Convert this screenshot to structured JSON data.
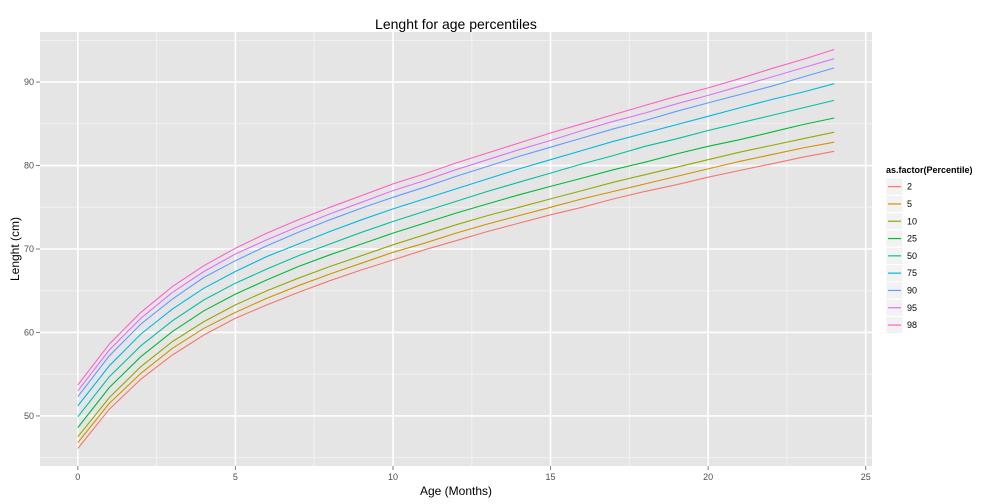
{
  "chart_data": {
    "type": "line",
    "title": "Lenght for age percentiles",
    "xlabel": "Age (Months)",
    "ylabel": "Lenght (cm)",
    "xlim": [
      -1.2,
      25.2
    ],
    "ylim": [
      44,
      96
    ],
    "x_ticks": [
      0,
      5,
      10,
      15,
      20,
      25
    ],
    "y_ticks": [
      50,
      60,
      70,
      80,
      90
    ],
    "grid": true,
    "legend": {
      "title": "as.factor(Percentile)",
      "placement": "right"
    },
    "x": [
      0,
      1,
      2,
      3,
      4,
      5,
      6,
      7,
      8,
      9,
      10,
      11,
      12,
      13,
      14,
      15,
      16,
      17,
      18,
      19,
      20,
      21,
      22,
      23,
      24
    ],
    "series": [
      {
        "name": "2",
        "color": "#F8766D",
        "values": [
          46.1,
          50.8,
          54.4,
          57.3,
          59.7,
          61.7,
          63.3,
          64.8,
          66.2,
          67.5,
          68.7,
          69.9,
          71.0,
          72.1,
          73.1,
          74.1,
          75.0,
          76.0,
          76.9,
          77.7,
          78.6,
          79.4,
          80.2,
          81.0,
          81.7
        ]
      },
      {
        "name": "5",
        "color": "#D39200",
        "values": [
          46.8,
          51.5,
          55.1,
          58.1,
          60.5,
          62.4,
          64.1,
          65.6,
          67.0,
          68.3,
          69.6,
          70.7,
          71.9,
          73.0,
          74.0,
          75.0,
          76.0,
          76.9,
          77.8,
          78.7,
          79.6,
          80.5,
          81.3,
          82.1,
          82.8
        ]
      },
      {
        "name": "10",
        "color": "#93AA00",
        "values": [
          47.5,
          52.2,
          55.9,
          58.9,
          61.3,
          63.3,
          65.0,
          66.5,
          67.9,
          69.2,
          70.5,
          71.7,
          72.9,
          74.0,
          75.0,
          76.0,
          77.0,
          78.0,
          78.9,
          79.8,
          80.7,
          81.6,
          82.4,
          83.2,
          84.0
        ]
      },
      {
        "name": "25",
        "color": "#00BA38",
        "values": [
          48.6,
          53.4,
          57.1,
          60.1,
          62.6,
          64.6,
          66.3,
          67.9,
          69.3,
          70.6,
          71.9,
          73.1,
          74.3,
          75.4,
          76.5,
          77.5,
          78.5,
          79.5,
          80.4,
          81.4,
          82.3,
          83.1,
          84.0,
          84.9,
          85.7
        ]
      },
      {
        "name": "50",
        "color": "#00C19F",
        "values": [
          49.9,
          54.7,
          58.4,
          61.4,
          63.9,
          65.9,
          67.6,
          69.2,
          70.6,
          72.0,
          73.3,
          74.5,
          75.7,
          76.9,
          78.0,
          79.1,
          80.2,
          81.2,
          82.3,
          83.2,
          84.2,
          85.1,
          86.0,
          86.9,
          87.8
        ]
      },
      {
        "name": "75",
        "color": "#00B9E3",
        "values": [
          51.2,
          56.0,
          59.8,
          62.8,
          65.3,
          67.3,
          69.1,
          70.6,
          72.1,
          73.5,
          74.8,
          76.0,
          77.2,
          78.4,
          79.6,
          80.7,
          81.8,
          82.9,
          83.9,
          84.9,
          85.9,
          86.9,
          87.9,
          88.8,
          89.8
        ]
      },
      {
        "name": "90",
        "color": "#619CFF",
        "values": [
          52.3,
          57.2,
          61.0,
          64.0,
          66.6,
          68.6,
          70.4,
          72.0,
          73.5,
          74.9,
          76.2,
          77.4,
          78.7,
          79.9,
          81.1,
          82.2,
          83.3,
          84.4,
          85.4,
          86.5,
          87.5,
          88.5,
          89.5,
          90.6,
          91.7
        ]
      },
      {
        "name": "95",
        "color": "#DB72FB",
        "values": [
          53.0,
          57.9,
          61.7,
          64.8,
          67.3,
          69.4,
          71.1,
          72.7,
          74.2,
          75.6,
          77.0,
          78.2,
          79.5,
          80.7,
          81.9,
          83.0,
          84.2,
          85.3,
          86.3,
          87.4,
          88.4,
          89.5,
          90.6,
          91.7,
          92.8
        ]
      },
      {
        "name": "98",
        "color": "#FF61C3",
        "values": [
          53.7,
          58.6,
          62.4,
          65.5,
          68.0,
          70.1,
          71.9,
          73.5,
          75.0,
          76.4,
          77.8,
          79.0,
          80.3,
          81.5,
          82.7,
          83.9,
          85.0,
          86.1,
          87.2,
          88.3,
          89.3,
          90.4,
          91.6,
          92.7,
          93.9
        ]
      }
    ]
  }
}
